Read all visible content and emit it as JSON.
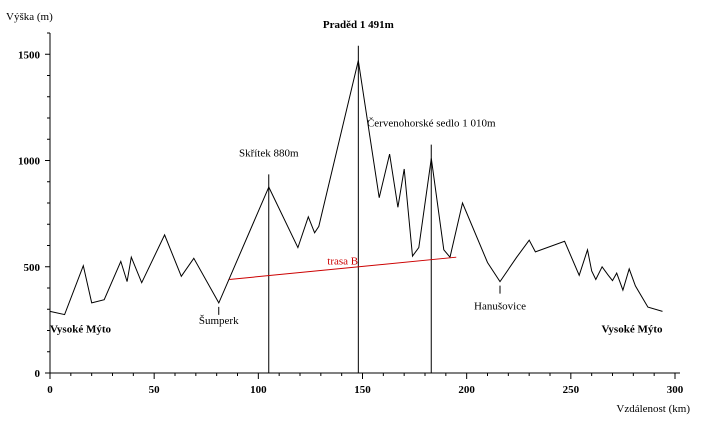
{
  "chart_data": {
    "type": "line",
    "title": "",
    "xlabel": "Vzdálenost (km)",
    "ylabel": "Výška (m)",
    "xlim": [
      0,
      300
    ],
    "ylim": [
      0,
      1600
    ],
    "x_ticks": [
      0,
      50,
      100,
      150,
      200,
      250,
      300
    ],
    "y_ticks": [
      0,
      500,
      1000,
      1500
    ],
    "grid": false,
    "colors": {
      "profile": "#000000",
      "route": "#cc0000"
    },
    "series": [
      {
        "x": [
          0,
          7,
          16,
          20,
          26,
          34,
          37,
          39,
          44,
          55,
          63,
          69,
          81,
          105,
          119,
          124,
          127,
          129,
          148,
          158,
          163,
          167,
          170,
          174,
          177,
          183,
          189,
          192,
          198,
          210,
          216,
          224,
          230,
          233,
          247,
          254,
          258,
          260,
          262,
          265,
          268,
          270,
          272,
          275,
          278,
          281,
          287,
          294
        ],
        "y": [
          290,
          275,
          505,
          330,
          345,
          525,
          430,
          545,
          425,
          650,
          455,
          540,
          330,
          875,
          590,
          735,
          660,
          690,
          1470,
          825,
          1030,
          780,
          960,
          550,
          590,
          1010,
          580,
          545,
          800,
          520,
          430,
          545,
          625,
          570,
          620,
          460,
          580,
          480,
          440,
          500,
          460,
          435,
          470,
          390,
          490,
          410,
          310,
          290
        ]
      }
    ],
    "route": {
      "label": "trasa B",
      "x": [
        86,
        195
      ],
      "y": [
        440,
        545
      ]
    },
    "markers": [
      {
        "x": 105,
        "y": 935,
        "label": "Skřítek 880m",
        "style": "normal"
      },
      {
        "x": 148,
        "y": 1540,
        "label": "Praděd 1 491m",
        "style": "bold"
      },
      {
        "x": 183,
        "y": 1075,
        "label": "Červenohorské sedlo 1 010m",
        "style": "normal"
      }
    ],
    "annotations": [
      {
        "text": "Vysoké Mýto",
        "x": 0,
        "y": 190,
        "style": "bold",
        "anchor": "start"
      },
      {
        "text": "Šumperk",
        "x": 81,
        "y": 230,
        "style": "normal",
        "anchor": "middle"
      },
      {
        "text": "Hanušovice",
        "x": 216,
        "y": 300,
        "style": "normal",
        "anchor": "middle"
      },
      {
        "text": "Vysoké Mýto",
        "x": 294,
        "y": 190,
        "style": "bold",
        "anchor": "end"
      }
    ]
  }
}
